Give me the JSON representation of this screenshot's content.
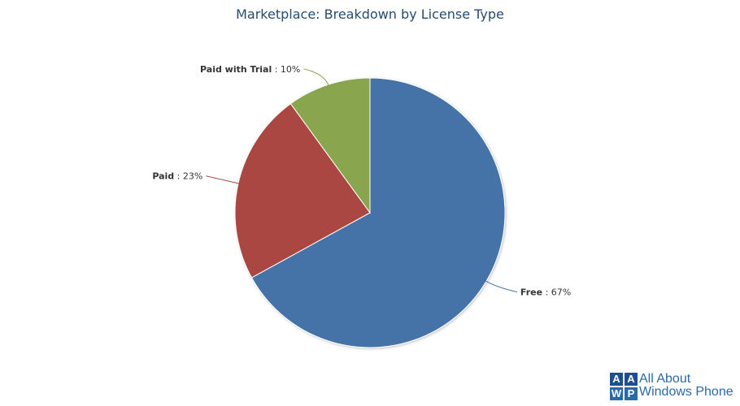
{
  "chart_data": {
    "type": "pie",
    "title": "Marketplace: Breakdown by License Type",
    "slices": [
      {
        "name": "Free",
        "value": 67,
        "color": "#4572a7"
      },
      {
        "name": "Paid",
        "value": 23,
        "color": "#aa4643"
      },
      {
        "name": "Paid with Trial",
        "value": 10,
        "color": "#89a54e"
      }
    ],
    "label_format": ": {value}%"
  },
  "watermark": {
    "letters": [
      "A",
      "A",
      "W",
      "P"
    ],
    "line1": "All About",
    "line2": "Windows Phone",
    "colors": [
      "#1f4e8c",
      "#1f4e8c",
      "#2a6aa8",
      "#2a6aa8"
    ]
  }
}
